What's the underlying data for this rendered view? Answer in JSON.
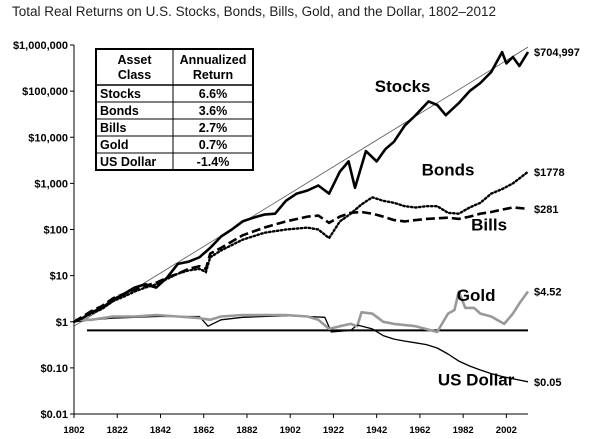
{
  "title": "Total Real Returns on U.S. Stocks, Bonds, Bills, Gold, and the Dollar, 1802–2012",
  "chart_data": {
    "type": "line",
    "title": "Total Real Returns on U.S. Stocks, Bonds, Bills, Gold, and the Dollar, 1802–2012",
    "xlabel": "",
    "ylabel": "",
    "x_scale": "linear",
    "y_scale": "log",
    "xlim": [
      1802,
      2012
    ],
    "ylim": [
      0.01,
      1000000
    ],
    "x_ticks": [
      1802,
      1822,
      1842,
      1862,
      1882,
      1902,
      1922,
      1942,
      1962,
      1982,
      2002
    ],
    "y_ticks": [
      {
        "value": 0.01,
        "label": "$0.01"
      },
      {
        "value": 0.1,
        "label": "$0.10"
      },
      {
        "value": 1,
        "label": "$1"
      },
      {
        "value": 10,
        "label": "$10"
      },
      {
        "value": 100,
        "label": "$100"
      },
      {
        "value": 1000,
        "label": "$1,000"
      },
      {
        "value": 10000,
        "label": "$10,000"
      },
      {
        "value": 100000,
        "label": "$100,000"
      },
      {
        "value": 1000000,
        "label": "$1,000,000"
      }
    ],
    "grid": false,
    "reference_line": {
      "y": 0.65
    },
    "trend_line": {
      "name": "Stocks trend",
      "x": [
        1802,
        2012
      ],
      "y": [
        0.8,
        900000
      ]
    },
    "series": [
      {
        "name": "Stocks",
        "color": "#000000",
        "style": "solid-thick",
        "end_label": "$704,997",
        "x": [
          1802,
          1806,
          1810,
          1815,
          1820,
          1825,
          1830,
          1835,
          1840,
          1845,
          1850,
          1855,
          1860,
          1865,
          1870,
          1875,
          1880,
          1885,
          1890,
          1895,
          1900,
          1905,
          1910,
          1915,
          1920,
          1925,
          1929,
          1932,
          1937,
          1942,
          1946,
          1950,
          1955,
          1960,
          1966,
          1970,
          1974,
          1980,
          1985,
          1990,
          1995,
          2000,
          2002,
          2005,
          2008,
          2012
        ],
        "y": [
          1.0,
          1.2,
          1.6,
          2.0,
          3.0,
          4.0,
          5.5,
          6.5,
          5.5,
          9.0,
          18,
          20,
          25,
          40,
          70,
          100,
          150,
          180,
          210,
          220,
          420,
          600,
          700,
          900,
          600,
          1800,
          3000,
          800,
          5000,
          3000,
          5500,
          8000,
          18000,
          30000,
          60000,
          50000,
          30000,
          55000,
          100000,
          150000,
          260000,
          700000,
          400000,
          550000,
          350000,
          704997
        ]
      },
      {
        "name": "Bonds",
        "color": "#000000",
        "style": "dotted",
        "end_label": "$1778",
        "x": [
          1802,
          1806,
          1810,
          1815,
          1820,
          1825,
          1830,
          1835,
          1840,
          1845,
          1850,
          1855,
          1860,
          1863,
          1865,
          1870,
          1880,
          1890,
          1900,
          1910,
          1915,
          1920,
          1925,
          1930,
          1935,
          1940,
          1945,
          1950,
          1955,
          1960,
          1965,
          1970,
          1975,
          1980,
          1985,
          1990,
          1995,
          2000,
          2005,
          2012
        ],
        "y": [
          1.0,
          1.2,
          1.5,
          1.9,
          2.8,
          3.5,
          4.5,
          5.5,
          6.5,
          8.5,
          11,
          13,
          14,
          12,
          25,
          35,
          60,
          85,
          100,
          110,
          100,
          65,
          150,
          220,
          350,
          500,
          420,
          380,
          320,
          300,
          320,
          320,
          230,
          220,
          300,
          380,
          600,
          750,
          1000,
          1778
        ]
      },
      {
        "name": "Bills",
        "color": "#000000",
        "style": "dashed",
        "end_label": "$281",
        "x": [
          1802,
          1806,
          1810,
          1815,
          1820,
          1825,
          1830,
          1835,
          1840,
          1845,
          1850,
          1855,
          1860,
          1863,
          1865,
          1870,
          1880,
          1890,
          1900,
          1910,
          1915,
          1920,
          1925,
          1930,
          1935,
          1940,
          1945,
          1950,
          1955,
          1960,
          1965,
          1970,
          1975,
          1980,
          1985,
          1990,
          1995,
          2000,
          2005,
          2012
        ],
        "y": [
          1.0,
          1.3,
          1.7,
          2.2,
          3.2,
          4.0,
          5.0,
          6.0,
          7.0,
          9.0,
          11,
          14,
          16,
          14,
          30,
          40,
          75,
          110,
          150,
          190,
          200,
          140,
          190,
          230,
          240,
          220,
          190,
          160,
          150,
          160,
          170,
          175,
          180,
          170,
          190,
          220,
          240,
          270,
          300,
          281
        ]
      },
      {
        "name": "Gold",
        "color": "#999999",
        "style": "solid-gray",
        "end_label": "$4.52",
        "x": [
          1802,
          1810,
          1820,
          1830,
          1840,
          1850,
          1860,
          1865,
          1870,
          1880,
          1890,
          1900,
          1910,
          1915,
          1920,
          1925,
          1930,
          1933,
          1935,
          1940,
          1945,
          1950,
          1960,
          1970,
          1975,
          1978,
          1980,
          1983,
          1987,
          1990,
          1995,
          2001,
          2005,
          2008,
          2012
        ],
        "y": [
          1.1,
          1.1,
          1.3,
          1.3,
          1.4,
          1.3,
          1.2,
          1.1,
          1.3,
          1.4,
          1.4,
          1.4,
          1.3,
          1.1,
          0.7,
          0.8,
          0.9,
          0.8,
          1.6,
          1.5,
          1.0,
          0.9,
          0.8,
          0.6,
          1.5,
          1.8,
          4.5,
          2.0,
          2.0,
          1.5,
          1.3,
          0.9,
          1.5,
          2.5,
          4.52
        ]
      },
      {
        "name": "Bills/Gold shadow",
        "color": "#000000",
        "style": "solid-thin",
        "end_label": "",
        "x": [
          1802,
          1810,
          1820,
          1830,
          1840,
          1850,
          1860,
          1864,
          1870,
          1880,
          1890,
          1900,
          1910,
          1918,
          1921,
          1930,
          1933
        ],
        "y": [
          1.0,
          1.1,
          1.2,
          1.25,
          1.3,
          1.3,
          1.3,
          0.8,
          1.1,
          1.25,
          1.3,
          1.35,
          1.3,
          1.25,
          0.6,
          0.65,
          0.85
        ]
      },
      {
        "name": "US Dollar",
        "color": "#000000",
        "style": "solid-thin",
        "end_label": "$0.05",
        "x": [
          1933,
          1940,
          1945,
          1950,
          1955,
          1960,
          1965,
          1970,
          1975,
          1980,
          1985,
          1990,
          1995,
          2000,
          2005,
          2012
        ],
        "y": [
          0.85,
          0.7,
          0.5,
          0.42,
          0.38,
          0.35,
          0.32,
          0.27,
          0.2,
          0.14,
          0.11,
          0.09,
          0.075,
          0.065,
          0.058,
          0.05
        ]
      }
    ],
    "series_labels": [
      {
        "text": "Stocks",
        "series": "Stocks"
      },
      {
        "text": "Bonds",
        "series": "Bonds"
      },
      {
        "text": "Bills",
        "series": "Bills"
      },
      {
        "text": "Gold",
        "series": "Gold"
      },
      {
        "text": "US Dollar",
        "series": "US Dollar"
      }
    ],
    "table": {
      "headers": [
        "Asset Class",
        "Annualized Return"
      ],
      "header_lines": [
        [
          "Asset",
          "Class"
        ],
        [
          "Annualized",
          "Return"
        ]
      ],
      "rows": [
        [
          "Stocks",
          "6.6%"
        ],
        [
          "Bonds",
          "3.6%"
        ],
        [
          "Bills",
          "2.7%"
        ],
        [
          "Gold",
          "0.7%"
        ],
        [
          "US Dollar",
          "-1.4%"
        ]
      ]
    }
  }
}
